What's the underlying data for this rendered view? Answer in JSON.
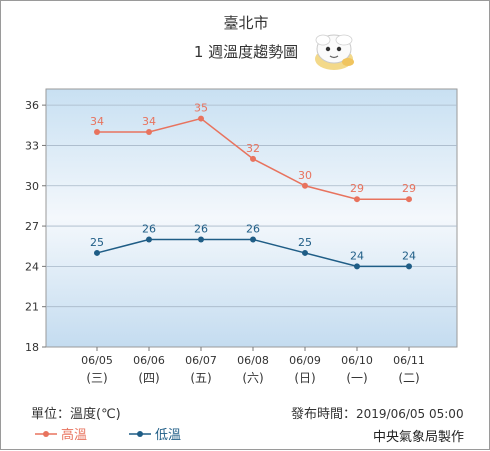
{
  "header": {
    "city": "臺北市",
    "subtitle": "1 週溫度趨勢圖",
    "mascot_icon": "weather-mascot-icon"
  },
  "footer": {
    "unit_label": "單位：溫度(℃)",
    "issued_label": "發布時間：",
    "issued_time": "2019/06/05 05:00",
    "agency": "中央氣象局製作"
  },
  "chart_data": {
    "type": "line",
    "categories": [
      "06/05",
      "06/06",
      "06/07",
      "06/08",
      "06/09",
      "06/10",
      "06/11"
    ],
    "weekdays": [
      "(三)",
      "(四)",
      "(五)",
      "(六)",
      "(日)",
      "(一)",
      "(二)"
    ],
    "y_ticks": [
      18,
      21,
      24,
      27,
      30,
      33,
      36
    ],
    "ylim": [
      18,
      37.2
    ],
    "grid": true,
    "legend_placement": "bottom-left",
    "series": [
      {
        "name": "高溫",
        "color": "#e8735e",
        "values": [
          34,
          34,
          35,
          32,
          30,
          29,
          29
        ]
      },
      {
        "name": "低溫",
        "color": "#1f5d86",
        "values": [
          25,
          26,
          26,
          26,
          25,
          24,
          24
        ]
      }
    ]
  }
}
